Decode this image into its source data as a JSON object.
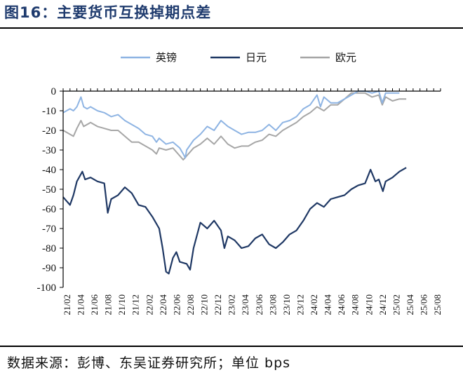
{
  "figure": {
    "title": "图16：主要货币互换掉期点差",
    "source": "数据来源：彭博、东吴证券研究所；单位 bps"
  },
  "chart_data": {
    "type": "line",
    "title": "主要货币互换掉期点差",
    "xlabel": "",
    "ylabel": "",
    "unit": "bps",
    "ylim": [
      -100,
      0
    ],
    "yticks": [
      0,
      -10,
      -20,
      -30,
      -40,
      -50,
      -60,
      -70,
      -80,
      -90,
      -100
    ],
    "xticks": [
      "21/02",
      "21/04",
      "21/06",
      "21/08",
      "21/10",
      "21/12",
      "22/02",
      "22/04",
      "22/06",
      "22/08",
      "22/10",
      "22/12",
      "23/02",
      "23/04",
      "23/06",
      "23/08",
      "23/10",
      "23/12",
      "24/02",
      "24/04",
      "24/06",
      "24/08",
      "24/10",
      "24/12",
      "25/02",
      "25/04",
      "25/06",
      "25/08"
    ],
    "grid": false,
    "legend_position": "top-center",
    "series": [
      {
        "name": "英镑",
        "color": "#8eb4e3",
        "points": [
          [
            0,
            -11
          ],
          [
            0.5,
            -10
          ],
          [
            1,
            -9
          ],
          [
            1.5,
            -10
          ],
          [
            2,
            -8
          ],
          [
            2.6,
            -3
          ],
          [
            3,
            -8
          ],
          [
            3.5,
            -9
          ],
          [
            4,
            -8
          ],
          [
            5,
            -10
          ],
          [
            6,
            -11
          ],
          [
            7,
            -13
          ],
          [
            8,
            -12
          ],
          [
            9,
            -15
          ],
          [
            10,
            -17
          ],
          [
            11,
            -19
          ],
          [
            12,
            -22
          ],
          [
            13,
            -23
          ],
          [
            13.6,
            -26
          ],
          [
            14,
            -24
          ],
          [
            15,
            -27
          ],
          [
            16,
            -26
          ],
          [
            17,
            -29
          ],
          [
            17.5,
            -32
          ],
          [
            17.8,
            -34
          ],
          [
            18,
            -30
          ],
          [
            19,
            -25
          ],
          [
            20,
            -22
          ],
          [
            21,
            -18
          ],
          [
            22,
            -20
          ],
          [
            23,
            -15
          ],
          [
            24,
            -18
          ],
          [
            25,
            -20
          ],
          [
            26,
            -22
          ],
          [
            27,
            -21
          ],
          [
            28,
            -21
          ],
          [
            29,
            -20
          ],
          [
            30,
            -17
          ],
          [
            31,
            -20
          ],
          [
            32,
            -16
          ],
          [
            33,
            -15
          ],
          [
            34,
            -13
          ],
          [
            35,
            -9
          ],
          [
            36,
            -7
          ],
          [
            37,
            -2
          ],
          [
            37.5,
            -8
          ],
          [
            38,
            -3
          ],
          [
            39,
            -6
          ],
          [
            40,
            -6
          ],
          [
            41,
            -4
          ],
          [
            42,
            -2
          ],
          [
            43,
            0
          ],
          [
            44,
            0
          ],
          [
            45,
            -1
          ],
          [
            46,
            0
          ],
          [
            46.5,
            -6
          ],
          [
            47,
            -1
          ],
          [
            48,
            -1
          ],
          [
            49,
            -1
          ]
        ]
      },
      {
        "name": "日元",
        "color": "#1f3864",
        "points": [
          [
            0,
            -54
          ],
          [
            0.5,
            -56
          ],
          [
            1,
            -58
          ],
          [
            1.5,
            -53
          ],
          [
            2,
            -46
          ],
          [
            2.8,
            -41
          ],
          [
            3.2,
            -45
          ],
          [
            4,
            -44
          ],
          [
            5,
            -46
          ],
          [
            6,
            -47
          ],
          [
            6.5,
            -62
          ],
          [
            7,
            -55
          ],
          [
            8,
            -53
          ],
          [
            9,
            -49
          ],
          [
            10,
            -52
          ],
          [
            11,
            -58
          ],
          [
            12,
            -59
          ],
          [
            13,
            -64
          ],
          [
            14,
            -70
          ],
          [
            14.5,
            -80
          ],
          [
            15,
            -92
          ],
          [
            15.4,
            -93
          ],
          [
            16,
            -85
          ],
          [
            16.5,
            -82
          ],
          [
            17,
            -87
          ],
          [
            18,
            -88
          ],
          [
            18.5,
            -91
          ],
          [
            19,
            -80
          ],
          [
            20,
            -67
          ],
          [
            21,
            -70
          ],
          [
            22,
            -66
          ],
          [
            23,
            -71
          ],
          [
            23.5,
            -80
          ],
          [
            24,
            -74
          ],
          [
            25,
            -76
          ],
          [
            26,
            -80
          ],
          [
            27,
            -79
          ],
          [
            28,
            -75
          ],
          [
            29,
            -73
          ],
          [
            30,
            -78
          ],
          [
            31,
            -80
          ],
          [
            32,
            -77
          ],
          [
            33,
            -73
          ],
          [
            34,
            -71
          ],
          [
            35,
            -66
          ],
          [
            36,
            -60
          ],
          [
            37,
            -57
          ],
          [
            38,
            -59
          ],
          [
            39,
            -55
          ],
          [
            40,
            -54
          ],
          [
            41,
            -53
          ],
          [
            42,
            -50
          ],
          [
            43,
            -48
          ],
          [
            44,
            -47
          ],
          [
            44.8,
            -40
          ],
          [
            45.5,
            -46
          ],
          [
            46,
            -45
          ],
          [
            46.6,
            -51
          ],
          [
            47,
            -46
          ],
          [
            48,
            -44
          ],
          [
            49,
            -41
          ],
          [
            50,
            -39
          ]
        ]
      },
      {
        "name": "欧元",
        "color": "#a6a6a6",
        "points": [
          [
            0,
            -20
          ],
          [
            0.5,
            -21
          ],
          [
            1,
            -22
          ],
          [
            1.5,
            -23
          ],
          [
            2,
            -19
          ],
          [
            2.6,
            -15
          ],
          [
            3,
            -18
          ],
          [
            4,
            -16
          ],
          [
            5,
            -18
          ],
          [
            6,
            -19
          ],
          [
            7,
            -20
          ],
          [
            8,
            -20
          ],
          [
            9,
            -23
          ],
          [
            10,
            -26
          ],
          [
            11,
            -26
          ],
          [
            12,
            -28
          ],
          [
            13,
            -30
          ],
          [
            13.6,
            -32
          ],
          [
            14,
            -29
          ],
          [
            15,
            -30
          ],
          [
            16,
            -29
          ],
          [
            17,
            -33
          ],
          [
            17.5,
            -35
          ],
          [
            18,
            -33
          ],
          [
            19,
            -29
          ],
          [
            20,
            -27
          ],
          [
            21,
            -24
          ],
          [
            22,
            -27
          ],
          [
            23,
            -23
          ],
          [
            24,
            -27
          ],
          [
            25,
            -29
          ],
          [
            26,
            -28
          ],
          [
            27,
            -28
          ],
          [
            28,
            -26
          ],
          [
            29,
            -25
          ],
          [
            30,
            -22
          ],
          [
            31,
            -23
          ],
          [
            32,
            -20
          ],
          [
            33,
            -18
          ],
          [
            34,
            -16
          ],
          [
            35,
            -13
          ],
          [
            36,
            -11
          ],
          [
            37,
            -8
          ],
          [
            38,
            -10
          ],
          [
            39,
            -7
          ],
          [
            40,
            -7
          ],
          [
            41,
            -4
          ],
          [
            42,
            -1
          ],
          [
            43,
            -1
          ],
          [
            44,
            -1
          ],
          [
            45,
            -3
          ],
          [
            46,
            -2
          ],
          [
            46.5,
            -7
          ],
          [
            47,
            -3
          ],
          [
            48,
            -5
          ],
          [
            49,
            -4
          ],
          [
            50,
            -4
          ]
        ]
      }
    ]
  }
}
